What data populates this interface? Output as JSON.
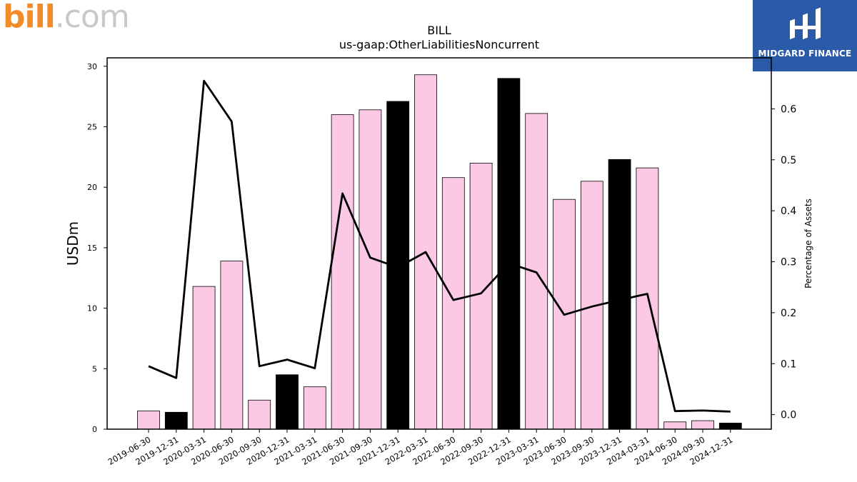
{
  "logos": {
    "left_b": "bill",
    "left_dom": ".com",
    "right_text": "MIDGARD FINANCE"
  },
  "colors": {
    "bar_normal": "#fcc9e4",
    "bar_highlight": "#000000",
    "line": "#000000",
    "brand_orange": "#f28c28",
    "brand_blue": "#2b5aa8"
  },
  "chart_data": {
    "type": "bar",
    "title": "BILL",
    "subtitle": "us-gaap:OtherLiabilitiesNoncurrent",
    "ylabel": "USDm",
    "y2label": "Percentage of Assets",
    "ylim": [
      0,
      30.7
    ],
    "y2lim": [
      -0.0285,
      0.7
    ],
    "yticks": [
      0,
      5,
      10,
      15,
      20,
      25,
      30
    ],
    "y2ticks": [
      0.0,
      0.1,
      0.2,
      0.3,
      0.4,
      0.5,
      0.6
    ],
    "categories": [
      "2019-06-30",
      "2019-12-31",
      "2020-03-31",
      "2020-06-30",
      "2020-09-30",
      "2020-12-31",
      "2021-03-31",
      "2021-06-30",
      "2021-09-30",
      "2021-12-31",
      "2022-03-31",
      "2022-06-30",
      "2022-09-30",
      "2022-12-31",
      "2023-03-31",
      "2023-06-30",
      "2023-09-30",
      "2023-12-31",
      "2024-03-31",
      "2024-06-30",
      "2024-09-30",
      "2024-12-31"
    ],
    "values": [
      1.5,
      1.4,
      11.8,
      13.9,
      2.4,
      4.5,
      3.5,
      26.0,
      26.4,
      27.1,
      29.3,
      20.8,
      22.0,
      29.0,
      26.1,
      19.0,
      20.5,
      22.3,
      21.6,
      0.6,
      0.7,
      0.5
    ],
    "highlight": [
      false,
      true,
      false,
      false,
      false,
      true,
      false,
      false,
      false,
      true,
      false,
      false,
      false,
      true,
      false,
      false,
      false,
      true,
      false,
      false,
      false,
      true
    ],
    "line_values": [
      0.095,
      0.072,
      0.655,
      0.575,
      0.095,
      0.108,
      0.091,
      0.434,
      0.308,
      0.289,
      0.319,
      0.225,
      0.238,
      0.297,
      0.279,
      0.196,
      0.212,
      0.225,
      0.237,
      0.007,
      0.008,
      0.006
    ],
    "grid": false
  }
}
